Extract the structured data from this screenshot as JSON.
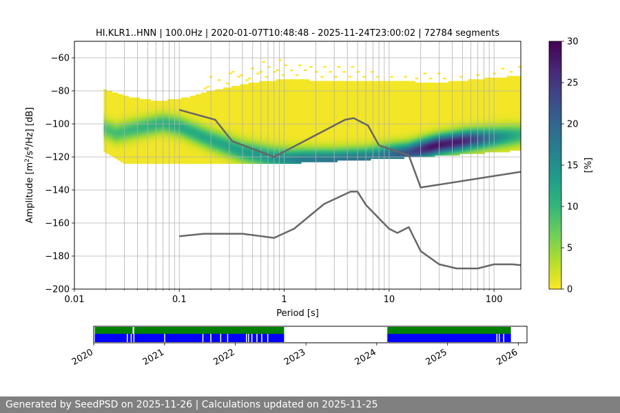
{
  "chart_data": {
    "type": "heatmap",
    "title": "HI.KLR1..HNN | 100.0Hz | 2020-01-07T10:48:48 - 2025-11-24T23:00:02 | 72784 segments",
    "xlabel": "Period [s]",
    "ylabel_main": "Amplitude [m",
    "ylabel_sup1": "2",
    "ylabel_mid": "/s",
    "ylabel_sup2": "4",
    "ylabel_end": "/Hz] [dB]",
    "xscale": "log",
    "xlim": [
      0.01,
      180
    ],
    "ylim": [
      -200,
      -50
    ],
    "x_ticks": [
      0.01,
      0.1,
      1,
      10,
      100
    ],
    "x_tick_labels": [
      "0.01",
      "0.1",
      "1",
      "10",
      "100"
    ],
    "y_ticks": [
      -200,
      -180,
      -160,
      -140,
      -120,
      -100,
      -80,
      -60
    ],
    "y_tick_labels": [
      "−200",
      "−180",
      "−160",
      "−140",
      "−120",
      "−100",
      "−80",
      "−60"
    ],
    "grid": true,
    "colorbar": {
      "label": "[%]",
      "range": [
        0,
        30
      ],
      "ticks": [
        0,
        5,
        10,
        15,
        20,
        25,
        30
      ],
      "tick_labels": [
        "0",
        "5",
        "10",
        "15",
        "20",
        "25",
        "30"
      ],
      "colormap": [
        "#fde725",
        "#b5de2b",
        "#6ece58",
        "#35b779",
        "#1f9e89",
        "#26828e",
        "#31688e",
        "#3e4989",
        "#482878",
        "#440154"
      ]
    },
    "psd_density": {
      "period_start": 0.019,
      "period_end": 180,
      "mode_db": [
        [
          0.019,
          -103
        ],
        [
          0.025,
          -106
        ],
        [
          0.04,
          -103
        ],
        [
          0.07,
          -100
        ],
        [
          0.1,
          -102
        ],
        [
          0.2,
          -110
        ],
        [
          0.4,
          -117
        ],
        [
          0.8,
          -121
        ],
        [
          1.2,
          -122
        ],
        [
          3,
          -122
        ],
        [
          6,
          -121
        ],
        [
          10,
          -119
        ],
        [
          15,
          -118
        ],
        [
          30,
          -113
        ],
        [
          60,
          -110
        ],
        [
          180,
          -107
        ]
      ],
      "mode_peak_percent": [
        [
          0.019,
          8
        ],
        [
          0.05,
          10
        ],
        [
          0.1,
          11
        ],
        [
          0.3,
          12
        ],
        [
          0.8,
          14
        ],
        [
          1.5,
          17
        ],
        [
          4,
          18
        ],
        [
          8,
          17
        ],
        [
          15,
          22
        ],
        [
          25,
          28
        ],
        [
          50,
          27
        ],
        [
          100,
          16
        ],
        [
          180,
          10
        ]
      ],
      "lower_envelope_db": [
        [
          0.019,
          -116
        ],
        [
          0.03,
          -124
        ],
        [
          0.1,
          -124
        ],
        [
          1,
          -124
        ],
        [
          10,
          -121
        ],
        [
          20,
          -120
        ],
        [
          180,
          -116
        ]
      ],
      "upper_envelope_db": [
        [
          0.019,
          -80
        ],
        [
          0.03,
          -84
        ],
        [
          0.06,
          -87
        ],
        [
          0.1,
          -86
        ],
        [
          0.2,
          -81
        ],
        [
          0.5,
          -76
        ],
        [
          1,
          -74
        ],
        [
          3,
          -75
        ],
        [
          10,
          -75
        ],
        [
          30,
          -76
        ],
        [
          100,
          -73
        ],
        [
          180,
          -72
        ]
      ],
      "sparse_upper_db": [
        [
          0.2,
          -72
        ],
        [
          0.4,
          -66
        ],
        [
          0.8,
          -62
        ],
        [
          1.5,
          -64
        ],
        [
          4,
          -65
        ],
        [
          10,
          -70
        ],
        [
          40,
          -70
        ],
        [
          180,
          -66
        ]
      ]
    },
    "series": [
      {
        "points": [
          [
            0.1,
            -91.5
          ],
          [
            0.22,
            -97.5
          ],
          [
            0.32,
            -110.5
          ],
          [
            0.8,
            -120
          ],
          [
            3.8,
            -97.5
          ],
          [
            4.6,
            -96.5
          ],
          [
            6.3,
            -101
          ],
          [
            8,
            -113
          ],
          [
            15.4,
            -119
          ],
          [
            20,
            -138.5
          ],
          [
            180,
            -129
          ]
        ],
        "color": "#666666"
      },
      {
        "points": [
          [
            0.1,
            -168
          ],
          [
            0.17,
            -166.5
          ],
          [
            0.4,
            -166.5
          ],
          [
            0.8,
            -169
          ],
          [
            1.24,
            -163.5
          ],
          [
            2.4,
            -148.5
          ],
          [
            4.3,
            -141
          ],
          [
            5,
            -141
          ],
          [
            6,
            -149
          ],
          [
            10,
            -163.5
          ],
          [
            12,
            -166
          ],
          [
            15.4,
            -162.5
          ],
          [
            20,
            -177
          ],
          [
            30,
            -185
          ],
          [
            44,
            -187.5
          ],
          [
            70,
            -187.5
          ],
          [
            100,
            -185
          ],
          [
            150,
            -185
          ],
          [
            180,
            -185.5
          ]
        ],
        "color": "#666666"
      }
    ],
    "timeline": {
      "range": [
        "2020-01-01",
        "2026-02-15"
      ],
      "tick_labels": [
        "2020",
        "2021",
        "2022",
        "2023",
        "2024",
        "2025",
        "2026"
      ],
      "tick_dates": [
        "2020-01-01",
        "2021-01-01",
        "2022-01-01",
        "2023-01-01",
        "2024-01-01",
        "2025-01-01",
        "2026-01-01"
      ],
      "green_spans": [
        [
          "2020-01-07",
          "2020-07-20"
        ],
        [
          "2020-07-28",
          "2022-09-10"
        ],
        [
          "2024-02-25",
          "2025-11-24"
        ]
      ],
      "blue_spans": [
        [
          "2020-01-07",
          "2022-09-10"
        ],
        [
          "2024-02-25",
          "2025-11-24"
        ]
      ],
      "blue_gaps": [
        "2020-06-20",
        "2020-07-10",
        "2020-07-24",
        "2020-12-30",
        "2021-07-15",
        "2021-08-25",
        "2021-10-15",
        "2021-11-20",
        "2022-02-25",
        "2022-03-08",
        "2022-03-25",
        "2022-04-20",
        "2022-05-15",
        "2022-06-15",
        "2025-09-10",
        "2025-09-22",
        "2025-10-15"
      ],
      "green_color": "#008000",
      "blue_color": "#0000ff"
    }
  },
  "footer": {
    "text": "Generated by SeedPSD on 2025-11-26 | Calculations updated on 2025-11-25"
  }
}
